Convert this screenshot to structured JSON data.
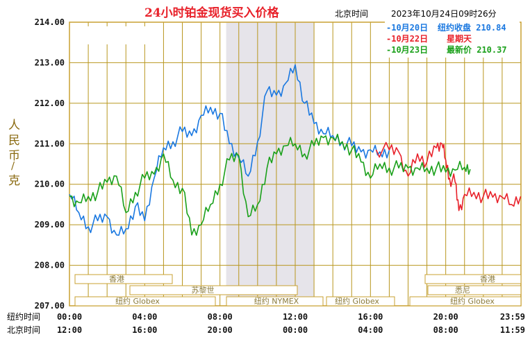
{
  "header": {
    "title": "24小时铂金现货买入价格",
    "time_label": "北京时间",
    "datetime": "2023年10月24日09时26分"
  },
  "row_labels": {
    "ny": "纽约时间",
    "bj": "北京时间"
  },
  "y_axis_label": "人民币/克",
  "legend": [
    {
      "date": "-10月20日",
      "info": "纽约收盘 210.84",
      "color": "#1a78e0"
    },
    {
      "date": "-10月22日",
      "info": "星期天",
      "color": "#e8212a"
    },
    {
      "date": "-10月23日",
      "info": "最新价 210.37",
      "color": "#1aa01a"
    }
  ],
  "sessions": [
    "香港",
    "苏黎世",
    "纽约 Globex",
    "纽约 NYMEX",
    "纽约 Globex",
    "香港",
    "悉尼",
    "纽约 Globex"
  ],
  "colors": {
    "grid": "#b8961e",
    "frame": "#c8a030",
    "shade": "#e6e4ea",
    "blue": "#1a78e0",
    "red": "#e8212a",
    "green": "#1aa01a"
  },
  "chart_data": {
    "type": "line",
    "title": "24小时铂金现货买入价格",
    "ylabel": "人民币/克",
    "ylim": [
      207.0,
      214.0
    ],
    "y_ticks": [
      "214.00",
      "213.00",
      "212.00",
      "211.00",
      "210.00",
      "209.00",
      "208.00",
      "207.00"
    ],
    "x_ticks_ny": [
      "00:00",
      "04:00",
      "08:00",
      "12:00",
      "16:00",
      "20:00",
      "23:59"
    ],
    "x_ticks_bj": [
      "12:00",
      "16:00",
      "20:00",
      "00:00",
      "04:00",
      "08:00",
      "11:59"
    ],
    "x_hours": [
      0,
      4,
      8,
      12,
      16,
      20,
      23.98
    ],
    "xlim": [
      0,
      24
    ],
    "series": [
      {
        "name": "10月20日",
        "hours": [
          0,
          0.5,
          1,
          1.5,
          2,
          2.5,
          3,
          3.5,
          4,
          4.5,
          5,
          5.5,
          6,
          6.5,
          7,
          7.5,
          8,
          8.5,
          9,
          9.5,
          10,
          10.5,
          11,
          11.5,
          12,
          12.5,
          13,
          13.5,
          14,
          14.5,
          15,
          15.5,
          16,
          16.5,
          17
        ],
        "values": [
          209.75,
          209.3,
          208.95,
          209.1,
          209.2,
          208.75,
          208.9,
          209.45,
          209.1,
          210.15,
          210.9,
          211.05,
          211.3,
          211.2,
          211.7,
          211.9,
          211.75,
          211.0,
          210.65,
          210.2,
          211.05,
          212.3,
          212.2,
          212.5,
          212.95,
          212.0,
          211.5,
          211.25,
          211.2,
          211.05,
          210.95,
          210.8,
          210.85,
          210.8,
          210.84
        ]
      },
      {
        "name": "10月22日",
        "hours": [
          16.3,
          17,
          17.5,
          18,
          18.5,
          19,
          19.5,
          19.8,
          20,
          20.2,
          20.5,
          20.7,
          21,
          21.5,
          22,
          22.5,
          23,
          23.5,
          23.98
        ],
        "values": [
          210.85,
          210.85,
          210.8,
          210.2,
          210.75,
          210.55,
          210.9,
          211.0,
          210.6,
          210.15,
          210.05,
          209.35,
          209.75,
          209.8,
          209.7,
          209.68,
          209.68,
          209.5,
          209.7
        ]
      },
      {
        "name": "10月23日",
        "hours": [
          0,
          0.5,
          1,
          1.5,
          2,
          2.5,
          3,
          3.5,
          4,
          4.5,
          5,
          5.5,
          6,
          6.5,
          7,
          7.5,
          8,
          8.5,
          9,
          9.5,
          10,
          10.5,
          11,
          11.5,
          12,
          12.5,
          13,
          13.5,
          14,
          14.5,
          15,
          15.5,
          16,
          16.5,
          17,
          17.5,
          18,
          18.5,
          19,
          19.5,
          20,
          20.5,
          21,
          21.3
        ],
        "values": [
          209.7,
          209.55,
          209.7,
          209.8,
          210.05,
          210.2,
          209.3,
          209.8,
          210.15,
          210.25,
          210.75,
          210.1,
          209.9,
          208.75,
          209.0,
          209.5,
          210.0,
          210.6,
          210.7,
          209.2,
          209.5,
          210.4,
          210.75,
          210.95,
          211.0,
          210.75,
          210.95,
          211.15,
          211.15,
          211.05,
          210.85,
          210.55,
          210.15,
          210.5,
          210.4,
          210.4,
          210.4,
          210.4,
          210.4,
          210.4,
          210.3,
          210.35,
          210.42,
          210.37
        ]
      }
    ]
  }
}
